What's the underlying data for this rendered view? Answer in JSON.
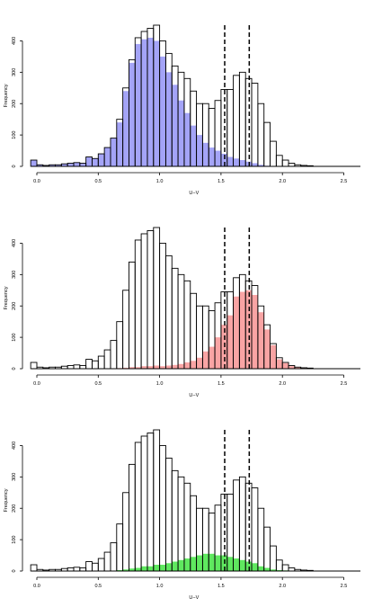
{
  "chart_data": [
    {
      "type": "bar",
      "xlabel": "U−V",
      "ylabel": "Frequency",
      "xlim": [
        -0.1,
        2.6
      ],
      "ylim": [
        0,
        450
      ],
      "bin_start": -0.05,
      "bin_width": 0.05,
      "xticks": [
        0.0,
        0.5,
        1.0,
        1.5,
        2.0,
        2.5
      ],
      "xtick_labels": [
        "0.0",
        "0.5",
        "1.0",
        "1.5",
        "2.0",
        "2.5"
      ],
      "yticks": [
        0,
        100,
        200,
        300,
        400
      ],
      "ytick_labels": [
        "0",
        "100",
        "200",
        "300",
        "400"
      ],
      "dashed_lines_x": [
        1.53,
        1.73
      ],
      "total_counts": [
        20,
        5,
        3,
        5,
        5,
        8,
        10,
        12,
        10,
        30,
        25,
        40,
        60,
        90,
        150,
        250,
        340,
        410,
        430,
        440,
        450,
        400,
        360,
        320,
        300,
        280,
        240,
        200,
        200,
        185,
        210,
        245,
        245,
        290,
        300,
        280,
        265,
        200,
        140,
        80,
        35,
        20,
        10,
        5,
        3,
        2
      ],
      "highlight_color": "#a4a4f7",
      "highlight_counts": [
        20,
        5,
        3,
        5,
        5,
        8,
        10,
        12,
        10,
        30,
        25,
        40,
        60,
        90,
        140,
        240,
        330,
        390,
        405,
        410,
        400,
        350,
        300,
        260,
        210,
        170,
        130,
        100,
        75,
        60,
        50,
        40,
        30,
        25,
        20,
        15,
        10,
        5,
        2,
        0,
        0,
        0,
        0,
        0,
        0,
        0
      ]
    },
    {
      "type": "bar",
      "xlabel": "U−V",
      "ylabel": "Frequency",
      "xlim": [
        -0.1,
        2.6
      ],
      "ylim": [
        0,
        450
      ],
      "bin_start": -0.05,
      "bin_width": 0.05,
      "xticks": [
        0.0,
        0.5,
        1.0,
        1.5,
        2.0,
        2.5
      ],
      "xtick_labels": [
        "0.0",
        "0.5",
        "1.0",
        "1.5",
        "2.0",
        "2.5"
      ],
      "yticks": [
        0,
        100,
        200,
        300,
        400
      ],
      "ytick_labels": [
        "0",
        "100",
        "200",
        "300",
        "400"
      ],
      "dashed_lines_x": [
        1.53,
        1.73
      ],
      "total_counts": [
        20,
        5,
        3,
        5,
        5,
        8,
        10,
        12,
        10,
        30,
        25,
        40,
        60,
        90,
        150,
        250,
        340,
        410,
        430,
        440,
        450,
        400,
        360,
        320,
        300,
        280,
        240,
        200,
        200,
        185,
        210,
        245,
        245,
        290,
        300,
        280,
        265,
        200,
        140,
        80,
        35,
        20,
        10,
        5,
        3,
        2
      ],
      "highlight_color": "#f9a4a4",
      "highlight_counts": [
        0,
        0,
        0,
        0,
        0,
        0,
        0,
        0,
        0,
        0,
        0,
        0,
        0,
        0,
        2,
        3,
        5,
        5,
        8,
        8,
        10,
        8,
        10,
        12,
        15,
        20,
        25,
        35,
        55,
        70,
        100,
        140,
        170,
        230,
        245,
        250,
        235,
        180,
        125,
        75,
        30,
        18,
        8,
        4,
        2,
        1
      ]
    },
    {
      "type": "bar",
      "xlabel": "U−V",
      "ylabel": "Frequency",
      "xlim": [
        -0.1,
        2.6
      ],
      "ylim": [
        0,
        450
      ],
      "bin_start": -0.05,
      "bin_width": 0.05,
      "xticks": [
        0.0,
        0.5,
        1.0,
        1.5,
        2.0,
        2.5
      ],
      "xtick_labels": [
        "0.0",
        "0.5",
        "1.0",
        "1.5",
        "2.0",
        "2.5"
      ],
      "yticks": [
        0,
        100,
        200,
        300,
        400
      ],
      "ytick_labels": [
        "0",
        "100",
        "200",
        "300",
        "400"
      ],
      "dashed_lines_x": [
        1.53,
        1.73
      ],
      "total_counts": [
        20,
        5,
        3,
        5,
        5,
        8,
        10,
        12,
        10,
        30,
        25,
        40,
        60,
        90,
        150,
        250,
        340,
        410,
        430,
        440,
        450,
        400,
        360,
        320,
        300,
        280,
        240,
        200,
        200,
        185,
        210,
        245,
        245,
        290,
        300,
        280,
        265,
        200,
        140,
        80,
        35,
        20,
        10,
        5,
        3,
        2
      ],
      "highlight_color": "#5fe85f",
      "highlight_counts": [
        0,
        0,
        0,
        0,
        0,
        0,
        0,
        0,
        0,
        0,
        0,
        0,
        0,
        0,
        3,
        5,
        8,
        10,
        15,
        15,
        20,
        20,
        25,
        30,
        35,
        40,
        45,
        50,
        55,
        55,
        50,
        50,
        45,
        40,
        35,
        30,
        25,
        15,
        10,
        5,
        3,
        2,
        1,
        0,
        0,
        0
      ]
    }
  ]
}
